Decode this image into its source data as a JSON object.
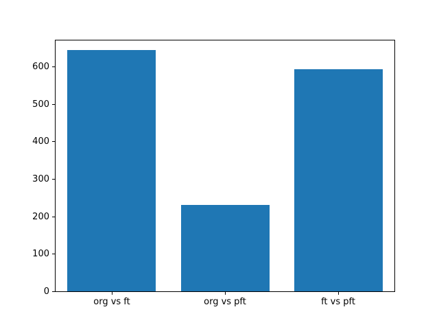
{
  "figure": {
    "background": "#ffffff"
  },
  "chart_data": {
    "type": "bar",
    "categories": [
      "org vs ft",
      "org vs pft",
      "ft vs pft"
    ],
    "values": [
      645,
      233,
      594
    ],
    "title": "",
    "xlabel": "",
    "ylabel": "",
    "ylim": [
      0,
      673
    ],
    "yticks": [
      0,
      100,
      200,
      300,
      400,
      500,
      600
    ],
    "bar_color": "#1f77b4",
    "bar_width_frac": 0.78,
    "grid": false,
    "legend": "none",
    "tick_color": "#000000",
    "frame_color": "#000000"
  }
}
